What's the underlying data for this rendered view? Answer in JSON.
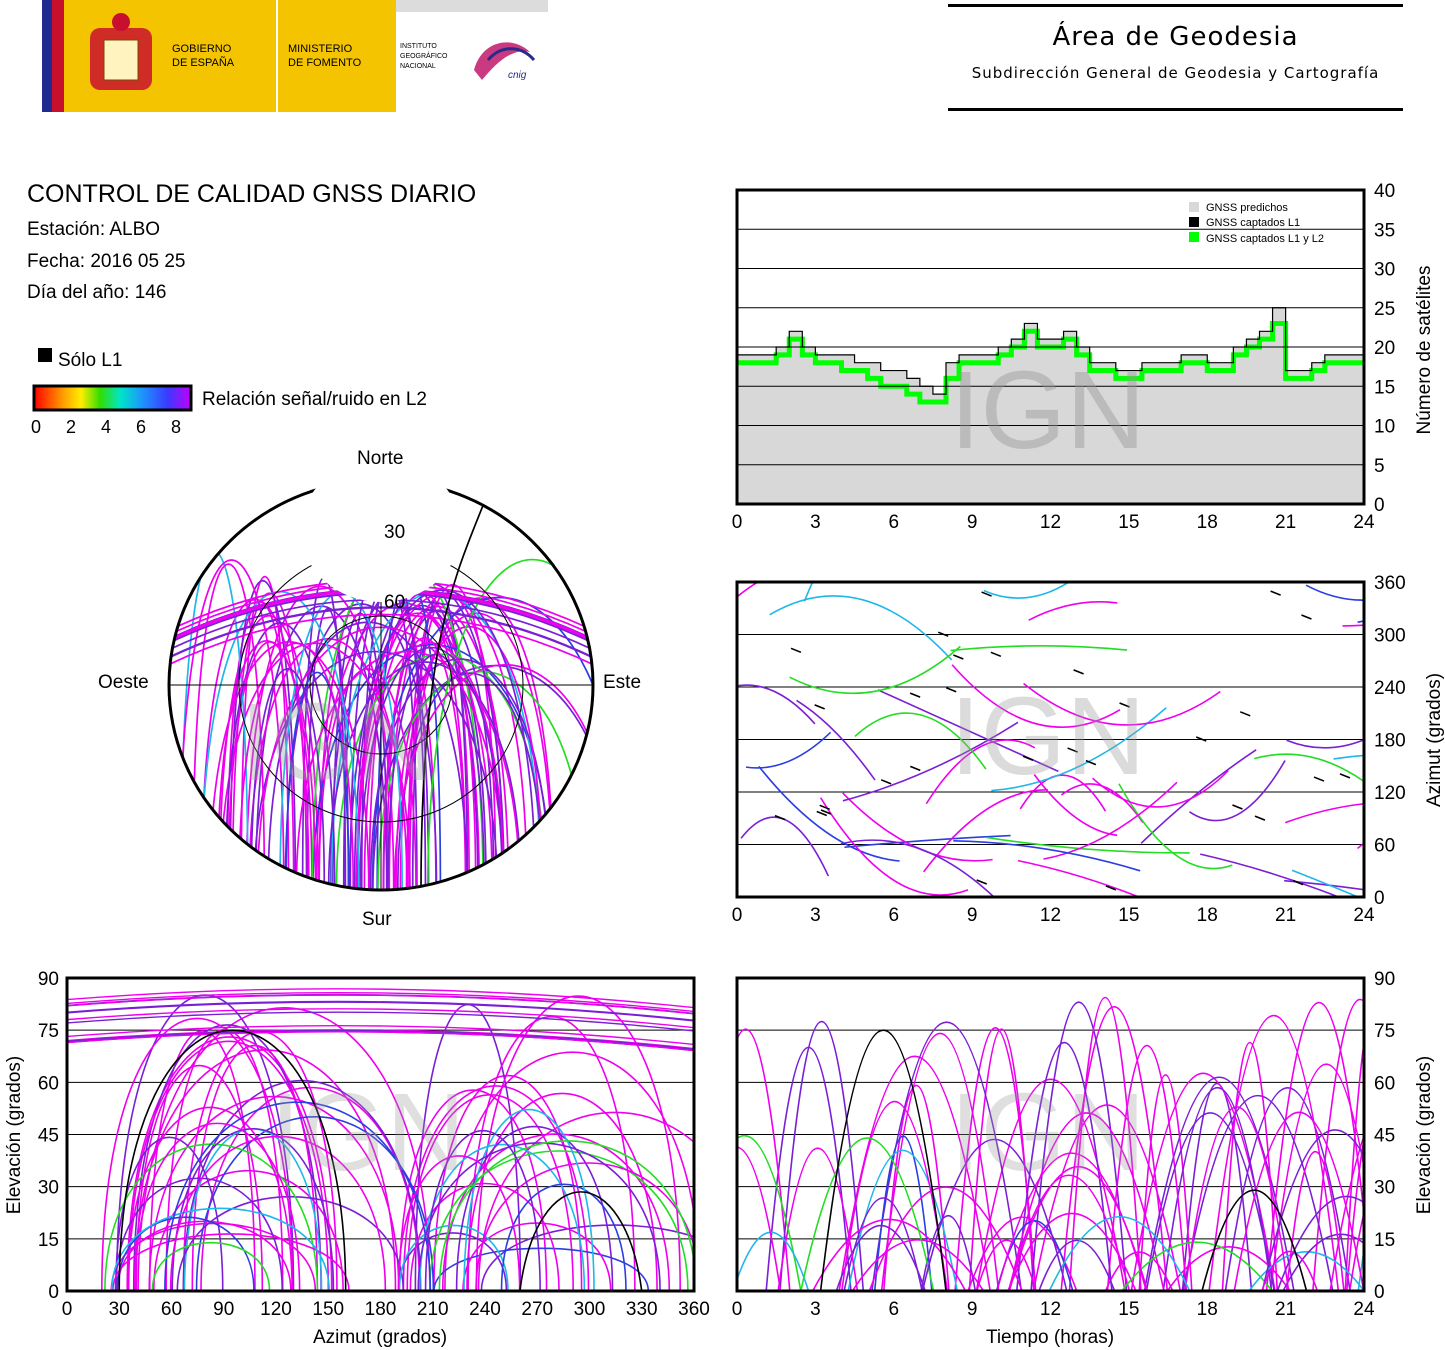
{
  "header": {
    "logo_gov_top": "GOBIERNO",
    "logo_gov_bottom": "DE ESPAÑA",
    "logo_min_top": "MINISTERIO",
    "logo_min_bottom": "DE FOMENTO",
    "logo_ign_1": "INSTITUTO",
    "logo_ign_2": "GEOGRÁFICO",
    "logo_ign_3": "NACIONAL",
    "logo_cnig": "cnig",
    "area_title": "Área de Geodesia",
    "area_subtitle": "Subdirección General de Geodesia y Cartografía"
  },
  "report": {
    "title": "CONTROL DE CALIDAD GNSS DIARIO",
    "station": "Estación: ALBO",
    "date": "Fecha: 2016 05 25",
    "doy": "Día del año: 146"
  },
  "legend": {
    "l1_only": "Sólo L1",
    "snr_label": "Relación señal/ruido en L2",
    "snr_ticks": [
      "0",
      "2",
      "4",
      "6",
      "8"
    ],
    "colors": {
      "l1_only": "#000000",
      "snr_low": "#ff0000",
      "snr_high": "#cc00ff"
    }
  },
  "watermark": "IGN",
  "palette": {
    "magenta": "#ee00ee",
    "violet": "#7a1fd6",
    "blue": "#2b3fe0",
    "cyan": "#1fb7e8",
    "green": "#22dd22",
    "black": "#000000"
  },
  "chart_data": [
    {
      "id": "skyplot",
      "type": "scatter",
      "title": "",
      "directions": {
        "north": "Norte",
        "south": "Sur",
        "west": "Oeste",
        "east": "Este"
      },
      "elevation_rings": [
        "30",
        "60"
      ],
      "notes_visible_gap": "no coverage near north (above ~35° elevation)"
    },
    {
      "id": "sat_count",
      "type": "area",
      "xlim": [
        0,
        24
      ],
      "ylim": [
        0,
        40
      ],
      "xticks": [
        "0",
        "3",
        "6",
        "9",
        "12",
        "15",
        "18",
        "21",
        "24"
      ],
      "yticks": [
        "0",
        "5",
        "10",
        "15",
        "20",
        "25",
        "30",
        "35",
        "40"
      ],
      "ylabel": "Número de satélites",
      "grid": true,
      "legend_position": "top-right",
      "series": [
        {
          "name": "GNSS predichos",
          "color": "#d8d8d8"
        },
        {
          "name": "GNSS captados L1",
          "color": "#000000"
        },
        {
          "name": "GNSS captados L1 y L2",
          "color": "#00ff00"
        }
      ],
      "x": [
        0,
        0.5,
        1,
        1.5,
        2,
        2.5,
        3,
        3.5,
        4,
        4.5,
        5,
        5.5,
        6,
        6.5,
        7,
        7.5,
        8,
        8.5,
        9,
        9.5,
        10,
        10.5,
        11,
        11.5,
        12,
        12.5,
        13,
        13.5,
        14,
        14.5,
        15,
        15.5,
        16,
        16.5,
        17,
        17.5,
        18,
        18.5,
        19,
        19.5,
        20,
        20.5,
        21,
        21.5,
        22,
        22.5,
        23,
        23.5,
        24
      ],
      "predicted": [
        19,
        19,
        19,
        20,
        22,
        20,
        19,
        19,
        19,
        18,
        18,
        17,
        17,
        16,
        15,
        14,
        18,
        19,
        19,
        19,
        20,
        21,
        23,
        21,
        21,
        22,
        20,
        18,
        18,
        17,
        17,
        18,
        18,
        18,
        19,
        19,
        18,
        18,
        20,
        21,
        22,
        25,
        17,
        17,
        18,
        19,
        19,
        19,
        19
      ],
      "l1": [
        19,
        19,
        19,
        20,
        22,
        20,
        19,
        19,
        19,
        18,
        18,
        17,
        17,
        16,
        15,
        14,
        18,
        19,
        19,
        19,
        20,
        21,
        23,
        21,
        21,
        22,
        20,
        18,
        18,
        17,
        17,
        18,
        18,
        18,
        19,
        19,
        18,
        18,
        20,
        21,
        22,
        25,
        17,
        17,
        18,
        19,
        19,
        19,
        19
      ],
      "l1l2": [
        18,
        18,
        18,
        19,
        21,
        19,
        18,
        18,
        17,
        17,
        16,
        15,
        15,
        14,
        13,
        13,
        16,
        18,
        18,
        18,
        19,
        20,
        22,
        20,
        20,
        21,
        19,
        17,
        17,
        16,
        16,
        17,
        17,
        17,
        18,
        18,
        17,
        17,
        19,
        20,
        21,
        23,
        16,
        16,
        17,
        18,
        18,
        18,
        18
      ]
    },
    {
      "id": "azimuth_time",
      "type": "scatter",
      "xlim": [
        0,
        24
      ],
      "ylim": [
        0,
        360
      ],
      "xticks": [
        "0",
        "3",
        "6",
        "9",
        "12",
        "15",
        "18",
        "21",
        "24"
      ],
      "yticks": [
        "0",
        "60",
        "120",
        "180",
        "240",
        "300",
        "360"
      ],
      "ylabel": "Azimut (grados)",
      "grid": true
    },
    {
      "id": "elevation_azimuth",
      "type": "scatter",
      "xlim": [
        0,
        360
      ],
      "ylim": [
        0,
        90
      ],
      "xticks": [
        "0",
        "30",
        "60",
        "90",
        "120",
        "150",
        "180",
        "210",
        "240",
        "270",
        "300",
        "330",
        "360"
      ],
      "yticks": [
        "0",
        "15",
        "30",
        "45",
        "60",
        "75",
        "90"
      ],
      "xlabel": "Azimut (grados)",
      "ylabel": "Elevación (grados)",
      "grid": true
    },
    {
      "id": "elevation_time",
      "type": "line",
      "xlim": [
        0,
        24
      ],
      "ylim": [
        0,
        90
      ],
      "xticks": [
        "0",
        "3",
        "6",
        "9",
        "12",
        "15",
        "18",
        "21",
        "24"
      ],
      "yticks": [
        "0",
        "15",
        "30",
        "45",
        "60",
        "75",
        "90"
      ],
      "xlabel": "Tiempo (horas)",
      "ylabel": "Elevación (grados)",
      "grid": true
    }
  ]
}
